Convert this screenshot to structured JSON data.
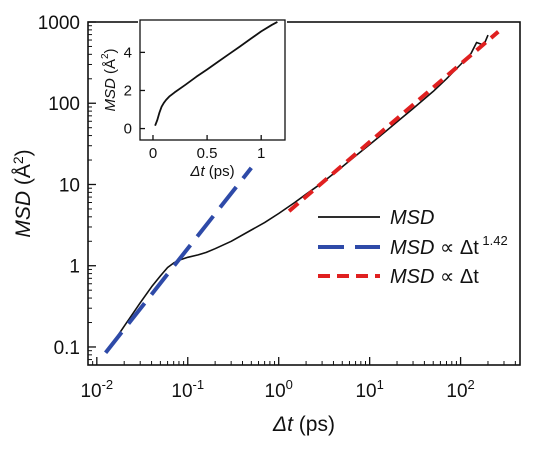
{
  "chart_data": [
    {
      "type": "line",
      "scale": {
        "x": "log",
        "y": "log"
      },
      "xlabel_var": "Δt",
      "xlabel_unit": " (ps)",
      "ylabel_var": "MSD",
      "ylabel_unit": " (Å",
      "ylabel_sup": "2",
      "ylabel_close": ")",
      "xlim": [
        0.008,
        450
      ],
      "ylim": [
        0.06,
        1000
      ],
      "x_ticks": [
        {
          "value": 0.01,
          "base": "10",
          "exp": "-2"
        },
        {
          "value": 0.1,
          "base": "10",
          "exp": "-1"
        },
        {
          "value": 1,
          "base": "10",
          "exp": "0"
        },
        {
          "value": 10,
          "base": "10",
          "exp": "1"
        },
        {
          "value": 100,
          "base": "10",
          "exp": "2"
        }
      ],
      "y_ticks": [
        {
          "value": 0.1,
          "label": "0.1"
        },
        {
          "value": 1,
          "label": "1"
        },
        {
          "value": 10,
          "label": "10"
        },
        {
          "value": 100,
          "label": "100"
        },
        {
          "value": 1000,
          "label": "1000"
        }
      ],
      "legend_position": "right",
      "series": [
        {
          "name": "MSD",
          "legend_var": "MSD",
          "legend_rest": "",
          "legend_sup": "",
          "color": "#111111",
          "style": "solid",
          "x": [
            0.014,
            0.02,
            0.03,
            0.04,
            0.05,
            0.06,
            0.07,
            0.08,
            0.1,
            0.13,
            0.16,
            0.2,
            0.3,
            0.5,
            0.7,
            1,
            1.5,
            2,
            3,
            5,
            7,
            10,
            15,
            20,
            30,
            50,
            70,
            100,
            130,
            150,
            180,
            200
          ],
          "y": [
            0.1,
            0.18,
            0.35,
            0.55,
            0.75,
            0.95,
            1.08,
            1.17,
            1.27,
            1.36,
            1.46,
            1.62,
            2.0,
            2.75,
            3.4,
            4.4,
            6.0,
            7.6,
            10.5,
            16.5,
            22.5,
            31,
            45,
            59,
            86,
            140,
            200,
            300,
            410,
            560,
            520,
            690
          ]
        },
        {
          "name": "MSD ∝ Δt^1.42",
          "legend_var": "MSD",
          "legend_rest": " ∝ Δt",
          "legend_sup": "1.42",
          "color": "#2e4aa8",
          "style": "long-dash",
          "x": [
            0.0125,
            0.5
          ],
          "y": [
            0.085,
            16
          ]
        },
        {
          "name": "MSD ∝ Δt",
          "legend_var": "MSD",
          "legend_rest": " ∝ Δt",
          "legend_sup": "",
          "color": "#e02020",
          "style": "short-dash",
          "x": [
            1.3,
            260
          ],
          "y": [
            4.7,
            760
          ]
        }
      ]
    },
    {
      "type": "line",
      "scale": {
        "x": "linear",
        "y": "linear"
      },
      "xlabel_var": "Δt",
      "xlabel_unit": " (ps)",
      "ylabel_var": "MSD",
      "ylabel_unit": " (Å",
      "ylabel_sup": "2",
      "ylabel_close": ")",
      "xlim": [
        -0.12,
        1.22
      ],
      "ylim": [
        -0.6,
        5.7
      ],
      "x_ticks": [
        {
          "value": 0,
          "label": "0"
        },
        {
          "value": 0.5,
          "label": "0.5"
        },
        {
          "value": 1,
          "label": "1"
        }
      ],
      "y_ticks": [
        {
          "value": 0,
          "label": "0"
        },
        {
          "value": 2,
          "label": "2"
        },
        {
          "value": 4,
          "label": "4"
        }
      ],
      "series": [
        {
          "color": "#111111",
          "style": "solid",
          "x": [
            0.02,
            0.04,
            0.06,
            0.08,
            0.1,
            0.12,
            0.15,
            0.2,
            0.3,
            0.4,
            0.5,
            0.6,
            0.7,
            0.8,
            0.9,
            1.0,
            1.1,
            1.15
          ],
          "y": [
            0.15,
            0.45,
            0.85,
            1.15,
            1.35,
            1.5,
            1.68,
            1.9,
            2.3,
            2.72,
            3.1,
            3.5,
            3.9,
            4.3,
            4.7,
            5.1,
            5.45,
            5.6
          ]
        }
      ]
    }
  ]
}
